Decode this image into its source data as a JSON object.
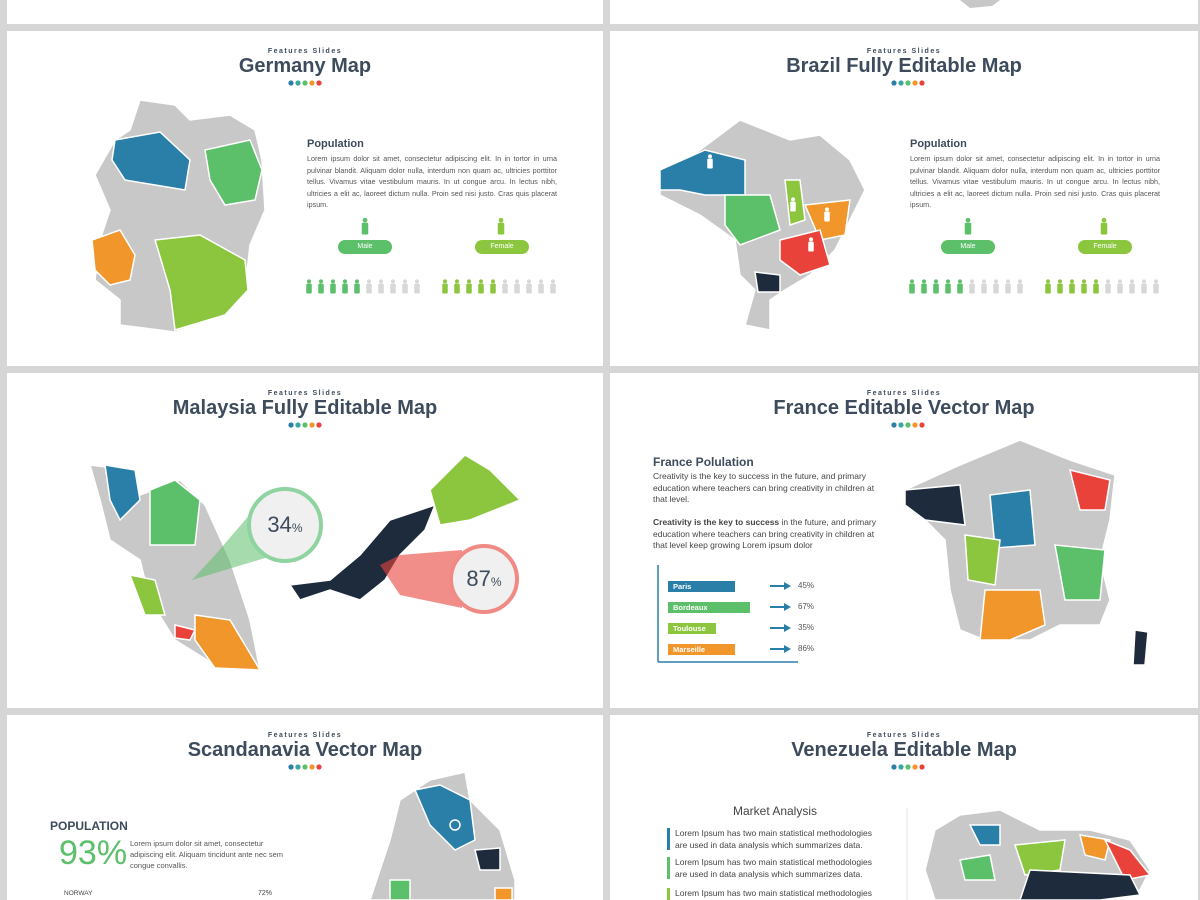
{
  "slides": [
    {
      "kicker": "Features Slides",
      "title": "Germany Map",
      "heading": "Population",
      "body": "Lorem ipsum dolor sit amet, consectetur adipiscing elit. In in tortor in urna pulvinar blandit. Aliquam dolor nulla, interdum non quam ac, ultricies porttitor tellus. Vivamus vitae vestibulum mauris. In ut congue arcu. In lectus nibh, ultricies a elit ac, laoreet dictum nulla. Proin sed nisi justo. Cras quis placerat ipsum.",
      "male": "Male",
      "female": "Female"
    },
    {
      "kicker": "Features Slides",
      "title": "Brazil Fully Editable Map",
      "heading": "Population",
      "body": "Lorem ipsum dolor sit amet, consectetur adipiscing elit. In in tortor in urna pulvinar blandit. Aliquam dolor nulla, interdum non quam ac, ultricies porttitor tellus. Vivamus vitae vestibulum mauris. In ut congue arcu. In lectus nibh, ultricies a elit ac, laoreet dictum nulla. Proin sed nisi justo. Cras quis placerat ipsum.",
      "male": "Male",
      "female": "Female"
    },
    {
      "kicker": "Features Slides",
      "title": "Malaysia Fully Editable Map",
      "stats": [
        {
          "number": "34",
          "unit": "%"
        },
        {
          "number": "87",
          "unit": "%"
        }
      ]
    },
    {
      "kicker": "Features Slides",
      "title": "France Editable Vector Map",
      "heading": "France Polulation",
      "paragraph": "Creativity is the key to success in the future, and primary education where teachers can bring creativity in children at that level.",
      "bold_lead": "Creativity is the key to success",
      "paragraph_rest": " in the future, and primary education where teachers can bring creativity in children at that level keep growing Lorem ipsum dolor",
      "rows": [
        {
          "label": "Paris",
          "value": "45%"
        },
        {
          "label": "Bordeaux",
          "value": "67%"
        },
        {
          "label": "Toulouse",
          "value": "35%"
        },
        {
          "label": "Marseille",
          "value": "86%"
        }
      ]
    },
    {
      "kicker": "Features Slides",
      "title": "Scandanavia Vector Map",
      "heading": "POPULATION",
      "stat": "93%",
      "body": "Lorem ipsum dolor sit amet, consectetur adipiscing elit. Aliquam tincidunt ante nec sem congue convallis.",
      "row_label": "NORWAY",
      "row_value": "72%"
    },
    {
      "kicker": "Features Slides",
      "title": "Venezuela Editable Map",
      "heading": "Market Analysis",
      "items": [
        "Lorem Ipsum has two main statistical methodologies are used in data analysis which summarizes data.",
        "Lorem Ipsum has two main statistical methodologies are used in data analysis which summarizes data.",
        "Lorem Ipsum has two main statistical methodologies"
      ]
    }
  ]
}
